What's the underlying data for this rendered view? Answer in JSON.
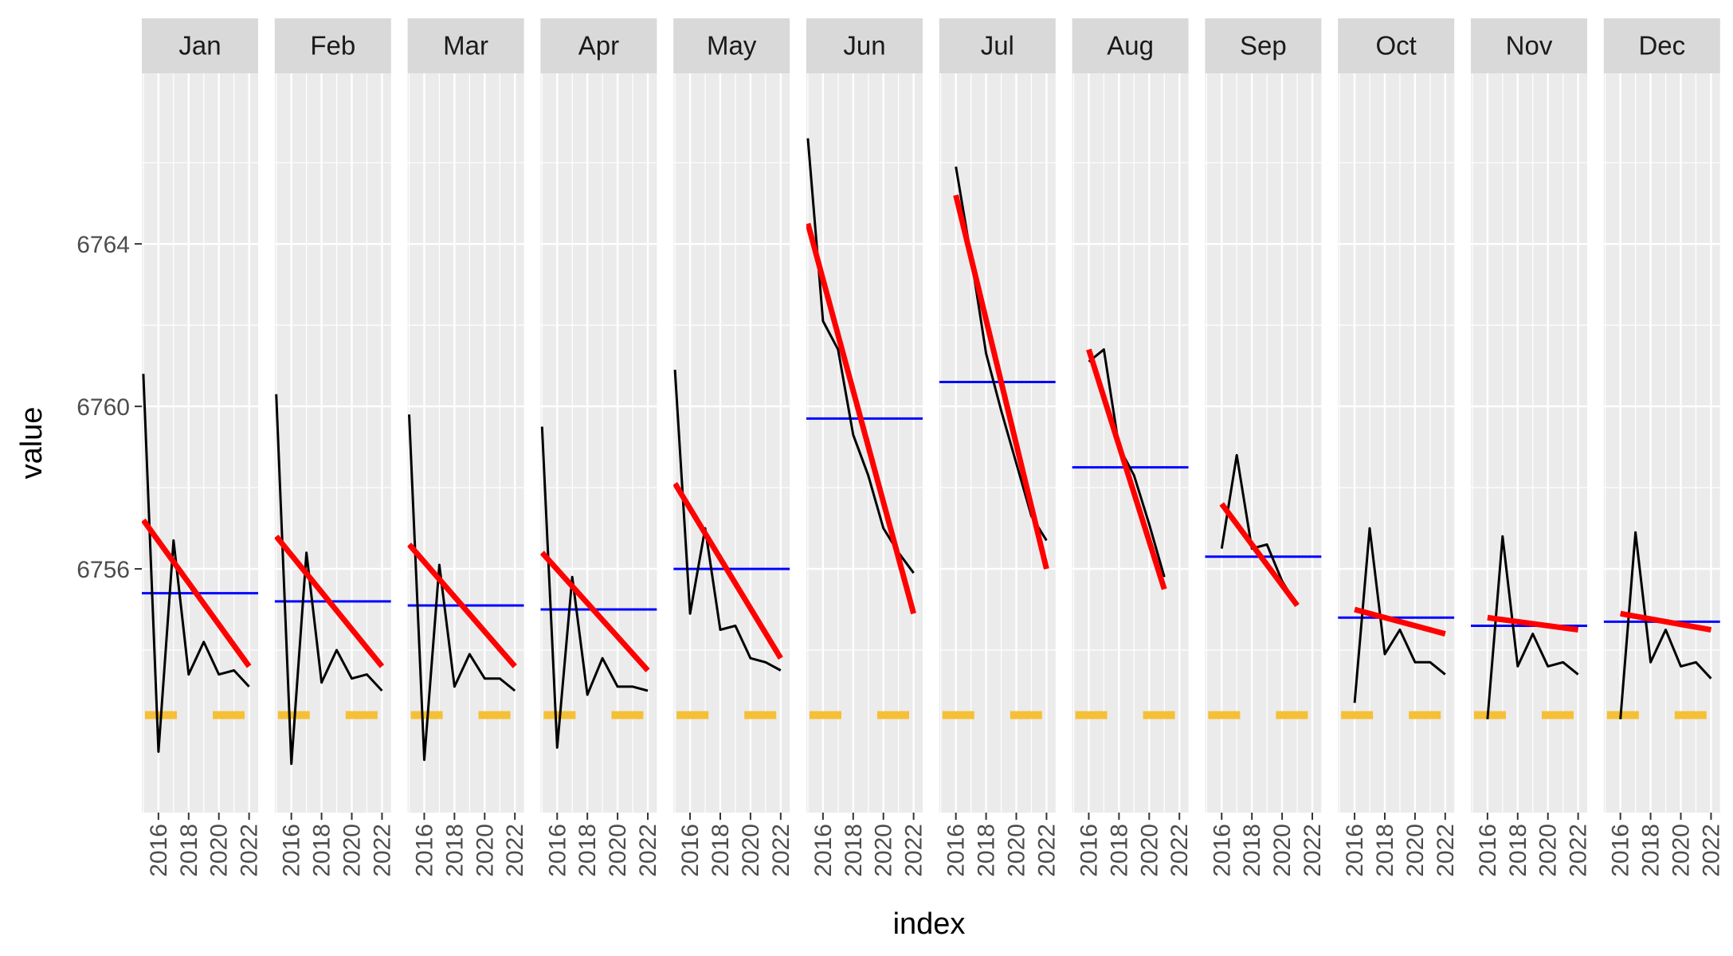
{
  "chart_data": {
    "type": "line",
    "facet_by": "month",
    "xlabel": "index",
    "ylabel": "value",
    "ylim": [
      6750.0,
      6768.2
    ],
    "y_ticks": [
      6756,
      6760,
      6764
    ],
    "x_ticks": [
      2016,
      2018,
      2020,
      2022
    ],
    "xlim": [
      2014.9,
      2022.6
    ],
    "grid": true,
    "colors": {
      "panel_background": "#ebebeb",
      "grid": "#ffffff",
      "strip_background": "#d9d9d9",
      "series": "#000000",
      "trend": "#ff0000",
      "mean": "#0000ff",
      "baseline": "#f5c037"
    },
    "facets": [
      {
        "label": "Jan",
        "x": [
          2015,
          2016,
          2017,
          2018,
          2019,
          2020,
          2021,
          2022
        ],
        "values": [
          6760.8,
          6751.5,
          6756.7,
          6753.4,
          6754.2,
          6753.4,
          6753.5,
          6753.1
        ],
        "mean": 6755.4,
        "trend": [
          6757.2,
          6753.6
        ],
        "baseline": 6752.4
      },
      {
        "label": "Feb",
        "x": [
          2015,
          2016,
          2017,
          2018,
          2019,
          2020,
          2021,
          2022
        ],
        "values": [
          6760.3,
          6751.2,
          6756.4,
          6753.2,
          6754.0,
          6753.3,
          6753.4,
          6753.0
        ],
        "mean": 6755.2,
        "trend": [
          6756.8,
          6753.6
        ],
        "baseline": 6752.4
      },
      {
        "label": "Mar",
        "x": [
          2015,
          2016,
          2017,
          2018,
          2019,
          2020,
          2021,
          2022
        ],
        "values": [
          6759.8,
          6751.3,
          6756.1,
          6753.1,
          6753.9,
          6753.3,
          6753.3,
          6753.0
        ],
        "mean": 6755.1,
        "trend": [
          6756.6,
          6753.6
        ],
        "baseline": 6752.4
      },
      {
        "label": "Apr",
        "x": [
          2015,
          2016,
          2017,
          2018,
          2019,
          2020,
          2021,
          2022
        ],
        "values": [
          6759.5,
          6751.6,
          6755.8,
          6752.9,
          6753.8,
          6753.1,
          6753.1,
          6753.0
        ],
        "mean": 6755.0,
        "trend": [
          6756.4,
          6753.5
        ],
        "baseline": 6752.4
      },
      {
        "label": "May",
        "x": [
          2015,
          2016,
          2017,
          2018,
          2019,
          2020,
          2021,
          2022
        ],
        "values": [
          6760.9,
          6754.9,
          6757.0,
          6754.5,
          6754.6,
          6753.8,
          6753.7,
          6753.5
        ],
        "mean": 6756.0,
        "trend": [
          6758.1,
          6753.8
        ],
        "baseline": 6752.4
      },
      {
        "label": "Jun",
        "x": [
          2015,
          2016,
          2017,
          2018,
          2019,
          2020,
          2021,
          2022
        ],
        "values": [
          6766.6,
          6762.1,
          6761.4,
          6759.3,
          6758.3,
          6757.0,
          6756.4,
          6755.9
        ],
        "mean": 6759.7,
        "trend": [
          6764.5,
          6754.9
        ],
        "baseline": 6752.4
      },
      {
        "label": "Jul",
        "x": [
          2016,
          2017,
          2018,
          2019,
          2020,
          2021,
          2022
        ],
        "values": [
          6765.9,
          6763.7,
          6761.3,
          6759.9,
          6758.6,
          6757.3,
          6756.7
        ],
        "mean": 6760.6,
        "trend": [
          6765.2,
          6756.0
        ],
        "baseline": 6752.4
      },
      {
        "label": "Aug",
        "x": [
          2016,
          2017,
          2018,
          2019,
          2020,
          2021
        ],
        "values": [
          6761.1,
          6761.4,
          6759.0,
          6758.3,
          6757.1,
          6755.8
        ],
        "mean": 6758.5,
        "trend": [
          6761.4,
          6755.5
        ],
        "baseline": 6752.4
      },
      {
        "label": "Sep",
        "x": [
          2016,
          2017,
          2018,
          2019,
          2020,
          2021
        ],
        "values": [
          6756.5,
          6758.8,
          6756.5,
          6756.6,
          6755.7,
          6755.1
        ],
        "mean": 6756.3,
        "trend": [
          6757.6,
          6755.1
        ],
        "baseline": 6752.4
      },
      {
        "label": "Oct",
        "x": [
          2016,
          2017,
          2018,
          2019,
          2020,
          2021,
          2022
        ],
        "values": [
          6752.7,
          6757.0,
          6753.9,
          6754.5,
          6753.7,
          6753.7,
          6753.4
        ],
        "mean": 6754.8,
        "trend": [
          6755.0,
          6754.4
        ],
        "baseline": 6752.4
      },
      {
        "label": "Nov",
        "x": [
          2016,
          2017,
          2018,
          2019,
          2020,
          2021,
          2022
        ],
        "values": [
          6752.3,
          6756.8,
          6753.6,
          6754.4,
          6753.6,
          6753.7,
          6753.4
        ],
        "mean": 6754.6,
        "trend": [
          6754.8,
          6754.5
        ],
        "baseline": 6752.4
      },
      {
        "label": "Dec",
        "x": [
          2016,
          2017,
          2018,
          2019,
          2020,
          2021,
          2022
        ],
        "values": [
          6752.3,
          6756.9,
          6753.7,
          6754.5,
          6753.6,
          6753.7,
          6753.3
        ],
        "mean": 6754.7,
        "trend": [
          6754.9,
          6754.5
        ],
        "baseline": 6752.4
      }
    ]
  }
}
